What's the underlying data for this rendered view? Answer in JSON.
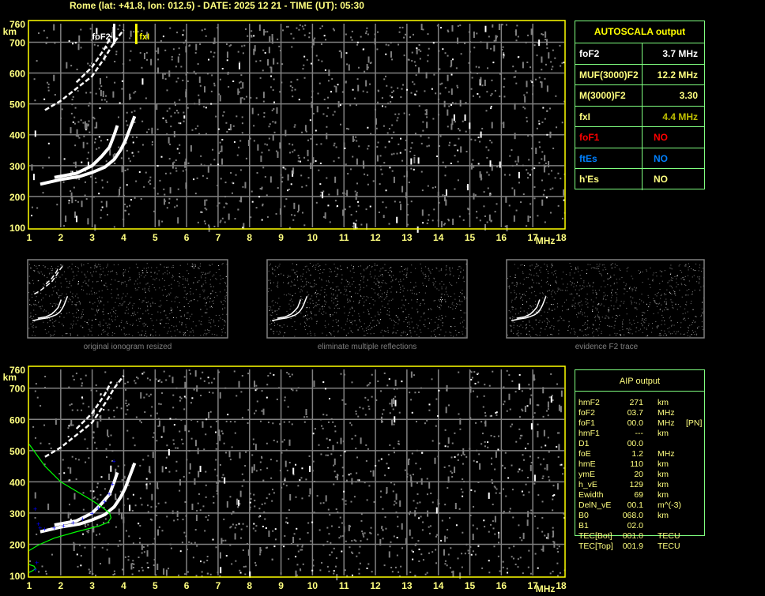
{
  "header": {
    "title": "Rome (lat: +41.8, lon: 012.5) - DATE: 2025 12 21 - TIME (UT): 05:30"
  },
  "colors": {
    "axis": "#ffff80",
    "frame": "#ffff00",
    "grid": "#808080",
    "table_border": "#80ff80",
    "foF1": "#ff0000",
    "ftEs": "#0080ff",
    "fxI": "#c0c000",
    "profile": "#00ff00",
    "aip_points": "#0000ff"
  },
  "chart_data": [
    {
      "type": "scatter",
      "panel": "autoscala-ionogram",
      "xlabel": "MHz",
      "ylabel": "km",
      "xlim": [
        1,
        18
      ],
      "ylim": [
        100,
        760
      ],
      "xticks": [
        "1",
        "2",
        "3",
        "4",
        "5",
        "6",
        "7",
        "8",
        "9",
        "10",
        "11",
        "12",
        "13",
        "14",
        "15",
        "16",
        "17",
        "18"
      ],
      "yticks": [
        "760",
        "700",
        "600",
        "500",
        "400",
        "300",
        "200",
        "100"
      ],
      "grid": true,
      "markers": [
        {
          "label": "foF2",
          "freq": 3.7,
          "color": "#ffffff"
        },
        {
          "label": "fxI",
          "freq": 4.4,
          "color": "#ffff00"
        }
      ],
      "traces": [
        {
          "freq": [
            1.35,
            2,
            2.6,
            3,
            3.4,
            3.7,
            3.9,
            4.05,
            4.2,
            4.35
          ],
          "height": [
            240,
            255,
            265,
            278,
            295,
            320,
            350,
            380,
            420,
            460
          ]
        },
        {
          "freq": [
            1.8,
            2.5,
            3,
            3.3,
            3.55,
            3.7,
            3.8
          ],
          "height": [
            262,
            275,
            300,
            330,
            360,
            400,
            430
          ]
        },
        {
          "freq": [
            1.5,
            2,
            2.5,
            3,
            3.4,
            3.7,
            4
          ],
          "height": [
            480,
            510,
            550,
            590,
            650,
            700,
            740
          ]
        },
        {
          "freq": [
            2.5,
            3,
            3.4,
            3.6
          ],
          "height": [
            570,
            620,
            680,
            720
          ]
        }
      ]
    },
    {
      "type": "scatter",
      "panel": "aip-ionogram",
      "xlabel": "MHz",
      "ylabel": "km",
      "xlim": [
        1,
        18
      ],
      "ylim": [
        100,
        760
      ],
      "xticks": [
        "1",
        "2",
        "3",
        "4",
        "5",
        "6",
        "7",
        "8",
        "9",
        "10",
        "11",
        "12",
        "13",
        "14",
        "15",
        "16",
        "17",
        "18"
      ],
      "yticks": [
        "760",
        "700",
        "600",
        "500",
        "400",
        "300",
        "200",
        "100"
      ],
      "grid": true,
      "profile": {
        "freq": [
          1,
          1.5,
          2,
          2.5,
          3,
          3.3,
          3.55,
          3.6,
          3.5,
          3.2,
          2.5,
          1.8,
          1.3,
          1
        ],
        "height": [
          520,
          450,
          400,
          370,
          340,
          320,
          300,
          285,
          270,
          258,
          240,
          220,
          198,
          180
        ]
      },
      "e_profile": {
        "freq": [
          1,
          1.15,
          1.2,
          1.1,
          1
        ],
        "height": [
          135,
          130,
          122,
          115,
          110
        ]
      },
      "aip_points": {
        "freq": [
          1.2,
          1.3,
          1.35,
          1.5,
          1.8,
          2.1,
          2.4,
          2.7,
          3,
          3.2,
          3.4,
          3.55,
          3.65,
          3.7,
          1.25,
          1.2
        ],
        "height": [
          313,
          265,
          252,
          248,
          252,
          258,
          268,
          280,
          298,
          315,
          335,
          360,
          392,
          465,
          140,
          118
        ]
      }
    }
  ],
  "thumbnails": [
    {
      "caption": "original ionogram resized"
    },
    {
      "caption": "eliminate multiple reflections"
    },
    {
      "caption": "evidence F2 trace"
    }
  ],
  "autoscala": {
    "title": "AUTOSCALA output",
    "rows": [
      {
        "label": "foF2",
        "value": "3.7 MHz",
        "color": "#ffffff"
      },
      {
        "label": "MUF(3000)F2",
        "value": "12.2 MHz",
        "color": "#ffff80"
      },
      {
        "label": "M(3000)F2",
        "value": "3.30",
        "color": "#ffff80"
      },
      {
        "label": "fxI",
        "value": "4.4 MHz",
        "color": "#ffff80",
        "value_color": "#c0c000"
      },
      {
        "label": "foF1",
        "value": "NO",
        "color": "#ff0000"
      },
      {
        "label": "ftEs",
        "value": "NO",
        "color": "#0080ff"
      },
      {
        "label": "h'Es",
        "value": "NO",
        "color": "#ffff80"
      }
    ]
  },
  "aip": {
    "title": "AIP output",
    "rows": [
      {
        "name": "hmF2",
        "value": "271",
        "unit": "km",
        "note": ""
      },
      {
        "name": "foF2",
        "value": "03.7",
        "unit": "MHz",
        "note": ""
      },
      {
        "name": "foF1",
        "value": "00.0",
        "unit": "MHz",
        "note": "[PN]"
      },
      {
        "name": "hmF1",
        "value": "---",
        "unit": "km",
        "note": ""
      },
      {
        "name": "D1",
        "value": "00.0",
        "unit": "",
        "note": ""
      },
      {
        "name": "foE",
        "value": "1.2",
        "unit": "MHz",
        "note": ""
      },
      {
        "name": "hmE",
        "value": "110",
        "unit": "km",
        "note": ""
      },
      {
        "name": "ymE",
        "value": "20",
        "unit": "km",
        "note": ""
      },
      {
        "name": "h_vE",
        "value": "129",
        "unit": "km",
        "note": ""
      },
      {
        "name": "Ewidth",
        "value": "69",
        "unit": "km",
        "note": ""
      },
      {
        "name": "DelN_vE",
        "value": "00.1",
        "unit": "m^(-3)",
        "note": ""
      },
      {
        "name": "B0",
        "value": "068.0",
        "unit": "km",
        "note": ""
      },
      {
        "name": "B1",
        "value": "02.0",
        "unit": "",
        "note": ""
      },
      {
        "name": "TEC[Bot]",
        "value": "001.0",
        "unit": "TECU",
        "note": ""
      },
      {
        "name": "TEC[Top]",
        "value": "001.9",
        "unit": "TECU",
        "note": ""
      }
    ]
  }
}
